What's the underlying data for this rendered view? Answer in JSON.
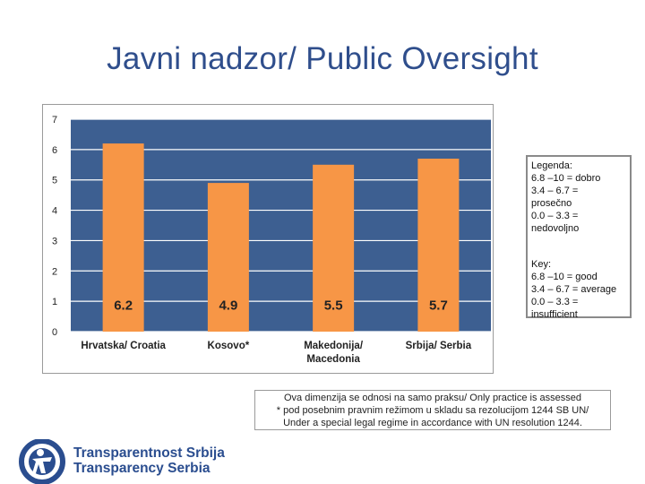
{
  "title": "Javni nadzor/ Public Oversight",
  "chart_data": {
    "type": "bar",
    "categories": [
      "Hrvatska/ Croatia",
      "Kosovo*",
      "Makedonija/ Macedonia",
      "Srbija/ Serbia"
    ],
    "category_lines": [
      [
        "Hrvatska/ Croatia"
      ],
      [
        "Kosovo*"
      ],
      [
        "Makedonija/",
        "Macedonia"
      ],
      [
        "Srbija/ Serbia"
      ]
    ],
    "values": [
      6.2,
      4.9,
      5.5,
      5.7
    ],
    "data_labels": [
      "6.2",
      "4.9",
      "5.5",
      "5.7"
    ],
    "ylim": [
      0,
      7
    ],
    "yticks": [
      0,
      1,
      2,
      3,
      4,
      5,
      6,
      7
    ],
    "grid": true,
    "colors": {
      "plot_bg": "#3d5f91",
      "bar": "#f79646",
      "grid": "#ffffff"
    }
  },
  "legend": {
    "local": [
      "Legenda:",
      "6.8 –10 = dobro",
      "3.4 – 6.7 =",
      "prosečno",
      "0.0 – 3.3 =",
      "nedovoljno"
    ],
    "english": [
      "Key:",
      "6.8 –10 = good",
      "3.4 – 6.7 = average",
      "0.0 – 3.3 =",
      "insufficient"
    ]
  },
  "note": [
    "Ova dimenzija se odnosi na samo praksu/ Only practice is assessed",
    "* pod posebnim pravnim režimom u skladu sa rezolucijom 1244 SB UN/",
    "Under a special legal regime in accordance with UN resolution 1244."
  ],
  "logo": {
    "line1": "Transparentnost Srbija",
    "line2": "Transparency Serbia",
    "color": "#2a4d8f"
  }
}
